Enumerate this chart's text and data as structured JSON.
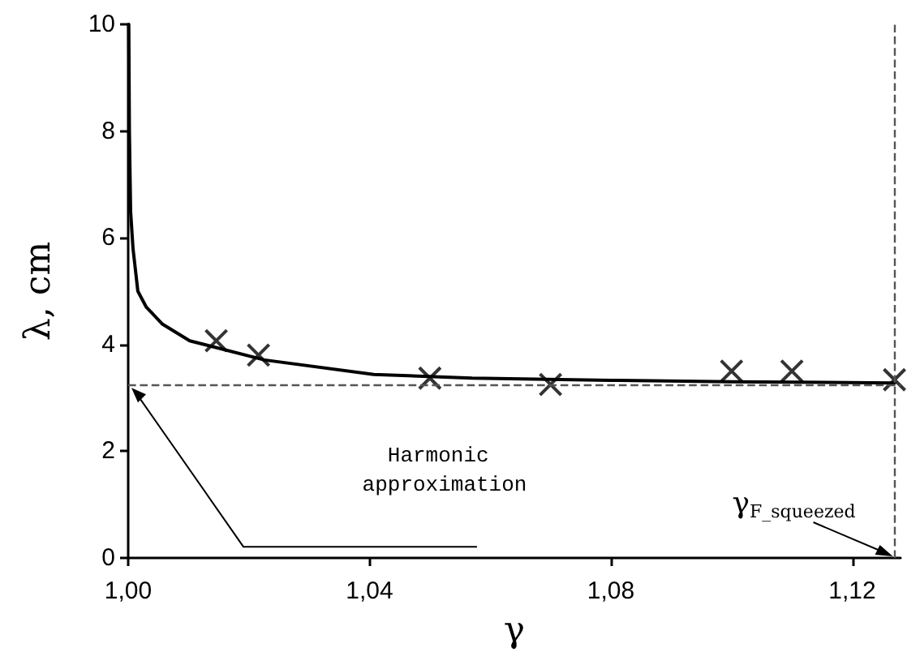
{
  "chart_data": {
    "type": "line",
    "xlabel": "γ",
    "ylabel": "λ, cm",
    "xlim": [
      1.0,
      1.128
    ],
    "xticks": [
      {
        "value": 1.0,
        "label": "1,00"
      },
      {
        "value": 1.04,
        "label": "1,04"
      },
      {
        "value": 1.08,
        "label": "1,08"
      },
      {
        "value": 1.12,
        "label": "1,12"
      }
    ],
    "ylim": [
      0,
      10
    ],
    "yticks": [
      0,
      2,
      4,
      6,
      8,
      10
    ],
    "grid": false,
    "series": [
      {
        "color": "#000000",
        "marker": "none",
        "line_style": "solid",
        "x": [
          1.0001,
          1.0002,
          1.0004,
          1.0008,
          1.0016,
          1.003,
          1.0057,
          1.0102,
          1.0226,
          1.0407,
          1.057,
          1.08,
          1.1,
          1.127
        ],
        "values": [
          10,
          8,
          6.5,
          5.8,
          5.0,
          4.7,
          4.38,
          4.07,
          3.71,
          3.44,
          3.37,
          3.33,
          3.3,
          3.28
        ]
      },
      {
        "type": "scatter",
        "color": "#000000",
        "marker": "cross",
        "x": [
          1.0146,
          1.0216,
          1.05,
          1.07,
          1.1,
          1.11,
          1.127
        ],
        "values": [
          4.07,
          3.8,
          3.37,
          3.25,
          3.5,
          3.5,
          3.34
        ]
      }
    ],
    "ref_lines": [
      {
        "axis": "y",
        "value": 3.25,
        "color": "#555555",
        "line_style": "dashed"
      },
      {
        "axis": "x",
        "value": 1.127,
        "color": "#555555",
        "line_style": "dashed"
      }
    ],
    "annotations": [
      "Harmonic approximation",
      "γ$_{F_squeezed}$"
    ]
  }
}
